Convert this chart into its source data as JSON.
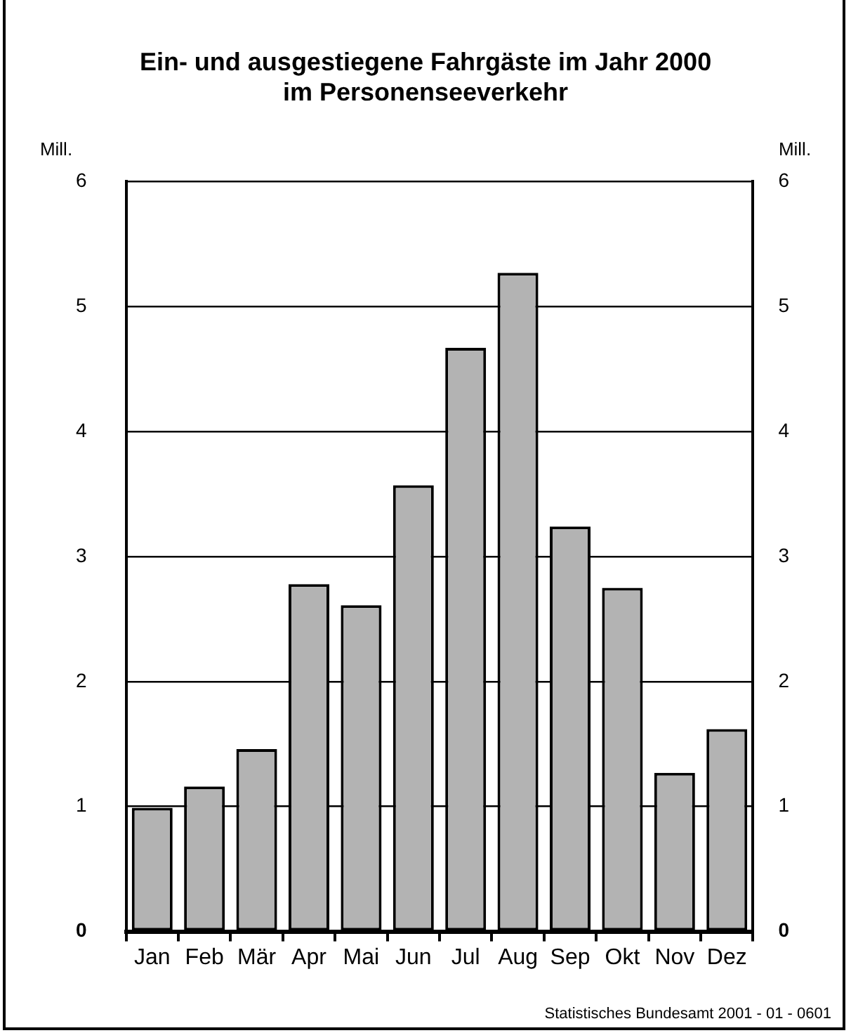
{
  "chart_data": {
    "type": "bar",
    "title": "Ein- und ausgestiegene Fahrgäste im Jahr 2000\nim Personenseeverkehr",
    "ylabel": "Mill.",
    "y2label": "Mill.",
    "categories": [
      "Jan",
      "Feb",
      "Mär",
      "Apr",
      "Mai",
      "Jun",
      "Jul",
      "Aug",
      "Sep",
      "Okt",
      "Nov",
      "Dez"
    ],
    "values": [
      0.99,
      1.16,
      1.46,
      2.78,
      2.61,
      3.57,
      4.67,
      5.27,
      3.24,
      2.75,
      1.27,
      1.62
    ],
    "color": "#b3b3b3",
    "ylim": [
      0,
      6
    ],
    "yticks": [
      0,
      1,
      2,
      3,
      4,
      5,
      6
    ],
    "y2lim": [
      0,
      6
    ],
    "y2ticks": [
      0,
      1,
      2,
      3,
      4,
      5,
      6
    ],
    "grid": "y",
    "legend": false,
    "annotations": [
      "Statistisches Bundesamt 2001 - 01 - 0601"
    ]
  }
}
